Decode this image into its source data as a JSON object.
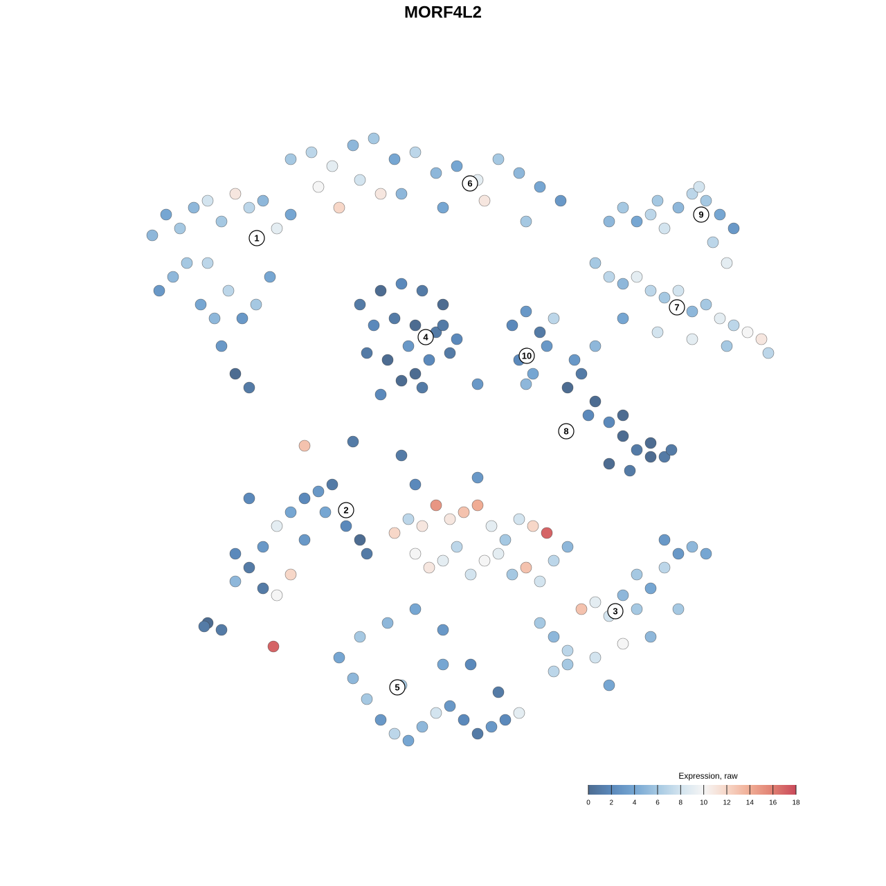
{
  "chart_data": {
    "type": "scatter",
    "title": "MORF4L2",
    "x": [
      2.2,
      2.4,
      2.6,
      2.8,
      3,
      3.2,
      3.4,
      3.6,
      3.8,
      4,
      4.2,
      2.3,
      2.5,
      2.7,
      2.9,
      3.1,
      3.3,
      3.5,
      3.7,
      3.9,
      3.2,
      3.4,
      3.6,
      3,
      4.2,
      4.5,
      4.8,
      5.1,
      5.4,
      5.7,
      6,
      6.3,
      6.6,
      6.9,
      7.2,
      7.5,
      7.8,
      8.1,
      4.6,
      5.2,
      5.8,
      6.4,
      7,
      7.6,
      4.9,
      5.5,
      5.2,
      5.5,
      5.8,
      6.1,
      6.4,
      5.4,
      5.7,
      6,
      6.3,
      6.6,
      5.3,
      5.6,
      5.9,
      6.2,
      6.5,
      5.8,
      6.1,
      5.5,
      6,
      6.4,
      7.4,
      7.6,
      7.8,
      8,
      7.5,
      7.7,
      7.9,
      7.6,
      8.8,
      9,
      9.2,
      9.4,
      9.6,
      9.8,
      10,
      10.2,
      10.4,
      10.6,
      10.1,
      10.3,
      9.5,
      10.5,
      8.6,
      8.8,
      9,
      9.2,
      9.4,
      9.6,
      9.8,
      10,
      10.2,
      10.4,
      10.6,
      10.8,
      11,
      9,
      9.5,
      10,
      10.5,
      11.1,
      8.2,
      8.4,
      8.6,
      8.8,
      9,
      9.2,
      9.4,
      9.6,
      8.5,
      8.8,
      9.1,
      9.4,
      9.7,
      8.3,
      9,
      8.6,
      3,
      3.2,
      3.4,
      3.6,
      3.8,
      4,
      4.2,
      4.4,
      4.6,
      4.8,
      5,
      5.2,
      3.4,
      3.8,
      4.2,
      3.6,
      4,
      4.4,
      4.7,
      5.3,
      5.7,
      5.9,
      6.1,
      6.3,
      6.5,
      6.7,
      6.9,
      7.1,
      7.3,
      7.5,
      7.7,
      7.9,
      6,
      6.2,
      6.4,
      6.6,
      6.8,
      7,
      7.2,
      7.4,
      7.6,
      7.8,
      8,
      8.2,
      6,
      6.9,
      7.8,
      8,
      8.2,
      8.4,
      8.6,
      8.8,
      9,
      9.2,
      9.4,
      9.6,
      9.8,
      10,
      10.2,
      8.2,
      8.6,
      9,
      9.4,
      9.8,
      8,
      8.8,
      9.2,
      9.6,
      4.9,
      5.1,
      5.3,
      5.5,
      5.7,
      5.9,
      6.1,
      6.3,
      6.5,
      6.7,
      6.9,
      7.1,
      7.3,
      7.5,
      5.2,
      5.6,
      6,
      6.4,
      6.8,
      7.2,
      5.8,
      6.4,
      4.4,
      3.95,
      2.95,
      5.1,
      6.9,
      5.8
    ],
    "y": [
      9.4,
      9.7,
      9.5,
      9.8,
      9.9,
      9.6,
      10,
      9.8,
      9.9,
      9.5,
      9.7,
      8.6,
      8.8,
      9,
      8.4,
      8.2,
      8.6,
      8.2,
      8.4,
      8.8,
      7.8,
      7.4,
      7.2,
      9,
      10.5,
      10.6,
      10.4,
      10.7,
      10.8,
      10.5,
      10.6,
      10.3,
      10.4,
      10.2,
      10.5,
      10.3,
      10.1,
      9.9,
      10.1,
      10.2,
      10,
      9.8,
      9.9,
      9.6,
      9.8,
      10,
      8.4,
      8.6,
      8.7,
      8.6,
      8.4,
      8.1,
      8.2,
      8.1,
      8,
      7.9,
      7.7,
      7.6,
      7.8,
      7.6,
      7.7,
      7.3,
      7.2,
      7.1,
      7.4,
      8.1,
      8.1,
      8.3,
      8,
      8.2,
      7.6,
      7.4,
      7.8,
      7.25,
      9.6,
      9.8,
      9.6,
      9.7,
      9.5,
      9.8,
      10,
      9.9,
      9.7,
      9.5,
      10.1,
      9.3,
      9.9,
      9,
      9,
      8.8,
      8.7,
      8.8,
      8.6,
      8.5,
      8.6,
      8.3,
      8.4,
      8.2,
      8.1,
      8,
      7.9,
      8.2,
      8,
      7.9,
      7.8,
      7.7,
      7.2,
      7.4,
      7,
      6.7,
      6.5,
      6.3,
      6.4,
      6.2,
      6.8,
      6.1,
      6,
      6.2,
      6.3,
      7.6,
      6.8,
      7.8,
      3.8,
      3.7,
      4.8,
      4.6,
      4.9,
      5.2,
      5.4,
      5.6,
      5.7,
      5.8,
      5.2,
      5,
      4.4,
      4.3,
      4.5,
      5.6,
      4.2,
      5,
      5.4,
      4.8,
      5.1,
      5.3,
      5.2,
      5.5,
      5.3,
      5.4,
      5.5,
      5.2,
      5,
      5.3,
      5.2,
      5.1,
      4.8,
      4.6,
      4.7,
      4.9,
      4.5,
      4.7,
      4.8,
      4.5,
      4.6,
      4.4,
      4.7,
      4.9,
      5.8,
      5.9,
      3.8,
      3.6,
      3.4,
      4,
      4.1,
      3.9,
      4.2,
      4,
      4.3,
      4.6,
      4.8,
      4.9,
      4.8,
      3.2,
      3.3,
      3.5,
      3.6,
      4,
      3.1,
      2.9,
      4.5,
      5,
      3.3,
      3,
      2.7,
      2.4,
      2.2,
      2.1,
      2.3,
      2.5,
      2.6,
      2.4,
      2.2,
      2.3,
      2.4,
      2.5,
      3.6,
      3.8,
      4,
      3.7,
      3.2,
      2.8,
      2.9,
      3.2,
      6.36,
      3.46,
      3.75,
      6.42,
      7.25,
      6.22
    ],
    "values": [
      5,
      4,
      6,
      5,
      8,
      6,
      11,
      7,
      5,
      9,
      4,
      3,
      5,
      6,
      4,
      5,
      7,
      3,
      6,
      4,
      3,
      0,
      1,
      7,
      6,
      7,
      9,
      5,
      6,
      4,
      7,
      5,
      4,
      9,
      6,
      5,
      4,
      3,
      10,
      8,
      5,
      4,
      11,
      6,
      12,
      11,
      1,
      0,
      2,
      1,
      0,
      2,
      1,
      0,
      1,
      2,
      1,
      0,
      3,
      2,
      1,
      0,
      1,
      2,
      0,
      1,
      2,
      3,
      1,
      7,
      2,
      4,
      3,
      5,
      5,
      6,
      4,
      7,
      8,
      5,
      7,
      6,
      4,
      3,
      8,
      7,
      6,
      9,
      6,
      7,
      5,
      9,
      7,
      6,
      8,
      5,
      6,
      9,
      7,
      10,
      11,
      4,
      8,
      9,
      6,
      7,
      0,
      1,
      0,
      2,
      0,
      1,
      0,
      1,
      2,
      0,
      1,
      0,
      1,
      3,
      0,
      5,
      0,
      1,
      2,
      1,
      3,
      9,
      4,
      2,
      3,
      1,
      2,
      0,
      5,
      1,
      12,
      2,
      10,
      3,
      4,
      1,
      12,
      7,
      11,
      15,
      11,
      13,
      14,
      9,
      6,
      8,
      12,
      17,
      10,
      11,
      9,
      7,
      8,
      10,
      9,
      6,
      13,
      8,
      7,
      5,
      2,
      3,
      6,
      5,
      7,
      13,
      9,
      8,
      5,
      6,
      4,
      7,
      3,
      5,
      4,
      6,
      8,
      10,
      5,
      6,
      7,
      4,
      6,
      3,
      4,
      5,
      6,
      3,
      7,
      4,
      5,
      8,
      3,
      2,
      1,
      3,
      2,
      9,
      6,
      5,
      4,
      3,
      2,
      1,
      6,
      4,
      13,
      17,
      1,
      1,
      3,
      1
    ],
    "clusters": [
      {
        "label": "1",
        "x": 3.71,
        "y": 9.36
      },
      {
        "label": "2",
        "x": 5,
        "y": 5.43
      },
      {
        "label": "3",
        "x": 8.89,
        "y": 3.97
      },
      {
        "label": "4",
        "x": 6.15,
        "y": 7.93
      },
      {
        "label": "5",
        "x": 5.74,
        "y": 2.87
      },
      {
        "label": "6",
        "x": 6.79,
        "y": 10.15
      },
      {
        "label": "7",
        "x": 9.78,
        "y": 8.36
      },
      {
        "label": "8",
        "x": 8.18,
        "y": 6.57
      },
      {
        "label": "9",
        "x": 10.13,
        "y": 9.7
      },
      {
        "label": "10",
        "x": 7.61,
        "y": 7.66
      }
    ],
    "colorbar": {
      "title": "Expression, raw",
      "lim": [
        0,
        18
      ],
      "ticks": [
        0,
        2,
        4,
        6,
        8,
        10,
        12,
        14,
        16,
        18
      ],
      "colors": [
        "#4d6c91",
        "#5b89bb",
        "#76a6d2",
        "#a5c8e2",
        "#d3e4ef",
        "#f5f5f5",
        "#f7d7c8",
        "#f0ac94",
        "#e07f72",
        "#c9495a"
      ]
    }
  }
}
